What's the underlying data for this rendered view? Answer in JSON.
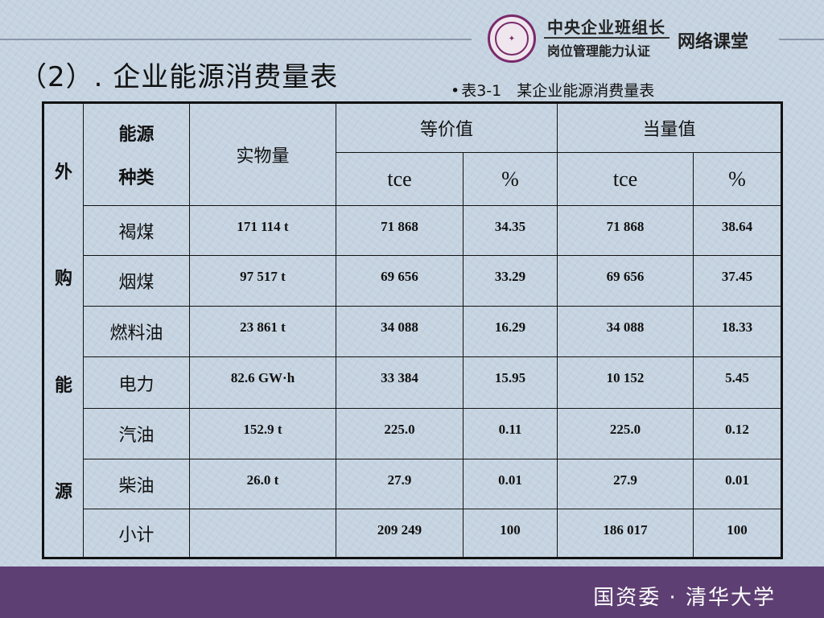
{
  "header": {
    "org_line1": "中央企业班组长",
    "org_line2": "岗位管理能力认证",
    "org_line3": "网络课堂"
  },
  "title": "（2）. 企业能源消费量表",
  "caption": {
    "bullet": "•",
    "text": "表3-1　某企业能源消费量表"
  },
  "table": {
    "side_label": [
      "外",
      "购",
      "能",
      "源"
    ],
    "head": {
      "type_line1": "能源",
      "type_line2": "种类",
      "physical": "实物量",
      "equivalent_value": "等价值",
      "equivalent_heat": "当量值",
      "unit_tce": "tce",
      "unit_pct": "%"
    },
    "rows": [
      {
        "type": "褐煤",
        "physical": "171 114 t",
        "ev_tce": "71 868",
        "ev_pct": "34.35",
        "eh_tce": "71 868",
        "eh_pct": "38.64"
      },
      {
        "type": "烟煤",
        "physical": "97 517 t",
        "ev_tce": "69 656",
        "ev_pct": "33.29",
        "eh_tce": "69 656",
        "eh_pct": "37.45"
      },
      {
        "type": "燃料油",
        "physical": "23 861 t",
        "ev_tce": "34 088",
        "ev_pct": "16.29",
        "eh_tce": "34 088",
        "eh_pct": "18.33"
      },
      {
        "type": "电力",
        "physical": "82.6 GW·h",
        "ev_tce": "33 384",
        "ev_pct": "15.95",
        "eh_tce": "10 152",
        "eh_pct": "5.45"
      },
      {
        "type": "汽油",
        "physical": "152.9 t",
        "ev_tce": "225.0",
        "ev_pct": "0.11",
        "eh_tce": "225.0",
        "eh_pct": "0.12"
      },
      {
        "type": "柴油",
        "physical": "26.0 t",
        "ev_tce": "27.9",
        "ev_pct": "0.01",
        "eh_tce": "27.9",
        "eh_pct": "0.01"
      },
      {
        "type": "小计",
        "physical": "",
        "ev_tce": "209 249",
        "ev_pct": "100",
        "eh_tce": "186 017",
        "eh_pct": "100"
      }
    ]
  },
  "footer": {
    "text": "国资委 · 清华大学"
  },
  "colors": {
    "background": "#c5d3e0",
    "footer": "#5e3f73",
    "logo": "#7a2a6a"
  }
}
